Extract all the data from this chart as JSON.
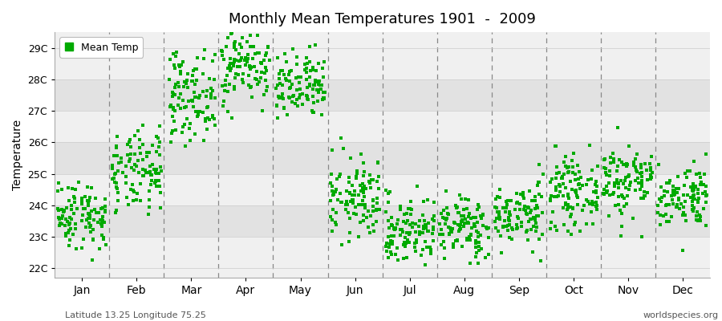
{
  "title": "Monthly Mean Temperatures 1901  -  2009",
  "ylabel": "Temperature",
  "xlabel_labels": [
    "Jan",
    "Feb",
    "Mar",
    "Apr",
    "May",
    "Jun",
    "Jul",
    "Aug",
    "Sep",
    "Oct",
    "Nov",
    "Dec"
  ],
  "ytick_labels": [
    "22C",
    "23C",
    "24C",
    "25C",
    "26C",
    "27C",
    "28C",
    "29C"
  ],
  "ytick_values": [
    22,
    23,
    24,
    25,
    26,
    27,
    28,
    29
  ],
  "ylim": [
    21.7,
    29.5
  ],
  "legend_label": "Mean Temp",
  "dot_color": "#00aa00",
  "dot_size": 12,
  "background_light": "#f0f0f0",
  "background_dark": "#e2e2e2",
  "footer_left": "Latitude 13.25 Longitude 75.25",
  "footer_right": "worldspecies.org",
  "monthly_means": [
    23.7,
    25.0,
    27.5,
    28.5,
    27.7,
    24.2,
    23.2,
    23.3,
    23.7,
    24.4,
    24.8,
    24.3
  ],
  "monthly_stds": [
    0.55,
    0.65,
    0.7,
    0.65,
    0.55,
    0.65,
    0.55,
    0.5,
    0.5,
    0.55,
    0.6,
    0.5
  ],
  "n_years": 109,
  "seed": 42
}
